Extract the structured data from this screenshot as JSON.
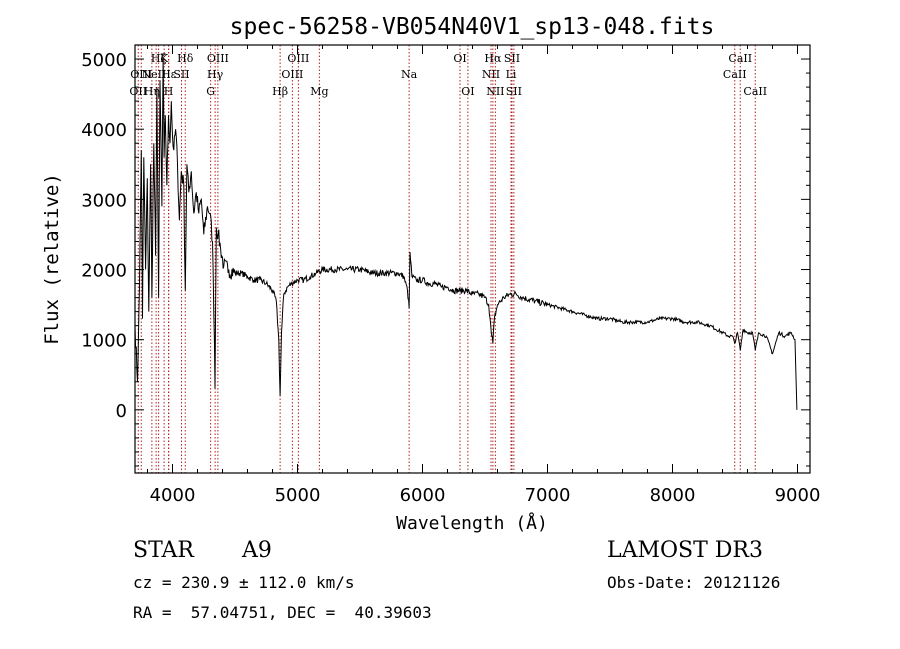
{
  "chart_data": {
    "type": "line",
    "title": "spec-56258-VB054N40V1_sp13-048.fits",
    "xlabel": "Wavelength (Å)",
    "ylabel": "Flux (relative)",
    "xlim": [
      3700,
      9100
    ],
    "ylim": [
      -900,
      5200
    ],
    "xticks": [
      4000,
      5000,
      6000,
      7000,
      8000,
      9000
    ],
    "yticks": [
      0,
      1000,
      2000,
      3000,
      4000,
      5000
    ],
    "grid": false,
    "line_color": "#000000",
    "line_marker_color": "#b22222",
    "series": [
      {
        "name": "flux",
        "x": [
          3700,
          3720,
          3735,
          3750,
          3760,
          3770,
          3785,
          3798,
          3810,
          3825,
          3835,
          3850,
          3865,
          3875,
          3889,
          3900,
          3915,
          3925,
          3933,
          3942,
          3955,
          3968,
          3980,
          3990,
          4000,
          4010,
          4025,
          4040,
          4055,
          4070,
          4090,
          4102,
          4115,
          4130,
          4150,
          4170,
          4190,
          4210,
          4230,
          4250,
          4280,
          4300,
          4320,
          4335,
          4340,
          4350,
          4365,
          4385,
          4410,
          4450,
          4500,
          4550,
          4600,
          4650,
          4700,
          4750,
          4800,
          4830,
          4850,
          4861,
          4872,
          4890,
          4920,
          4950,
          5000,
          5050,
          5100,
          5150,
          5200,
          5300,
          5400,
          5500,
          5600,
          5700,
          5800,
          5850,
          5880,
          5893,
          5900,
          5915,
          5950,
          6000,
          6050,
          6100,
          6150,
          6200,
          6250,
          6300,
          6350,
          6400,
          6450,
          6500,
          6530,
          6550,
          6563,
          6575,
          6600,
          6650,
          6700,
          6750,
          6800,
          6900,
          7000,
          7100,
          7200,
          7300,
          7400,
          7500,
          7600,
          7700,
          7800,
          7900,
          8000,
          8100,
          8200,
          8300,
          8400,
          8450,
          8480,
          8498,
          8520,
          8542,
          8565,
          8600,
          8640,
          8662,
          8690,
          8750,
          8800,
          8850,
          8900,
          8950,
          8980,
          8995
        ],
        "values": [
          1200,
          400,
          1700,
          3700,
          1300,
          3600,
          2000,
          3300,
          1400,
          3500,
          1600,
          3800,
          2200,
          4600,
          1600,
          4700,
          2900,
          5000,
          3600,
          4200,
          3200,
          4200,
          3800,
          4400,
          3900,
          3700,
          4000,
          3500,
          2700,
          3400,
          3200,
          1700,
          3500,
          3100,
          3400,
          2800,
          3100,
          2800,
          3000,
          2500,
          2900,
          2800,
          2400,
          1000,
          300,
          2600,
          2500,
          2300,
          2050,
          2000,
          1950,
          1950,
          1900,
          1850,
          1850,
          1800,
          1700,
          1550,
          1000,
          200,
          1100,
          1650,
          1750,
          1800,
          1850,
          1850,
          1900,
          1950,
          2000,
          2000,
          2000,
          2000,
          1950,
          1950,
          1950,
          1900,
          1700,
          1450,
          2250,
          1900,
          1850,
          1850,
          1800,
          1800,
          1750,
          1750,
          1700,
          1700,
          1700,
          1650,
          1650,
          1600,
          1500,
          1100,
          950,
          1300,
          1500,
          1600,
          1650,
          1650,
          1600,
          1550,
          1500,
          1450,
          1400,
          1350,
          1300,
          1300,
          1250,
          1250,
          1250,
          1300,
          1300,
          1250,
          1250,
          1200,
          1100,
          1050,
          1050,
          950,
          1100,
          850,
          1150,
          1100,
          1100,
          850,
          1100,
          1050,
          800,
          1100,
          1050,
          1100,
          1000,
          0
        ]
      }
    ],
    "lines": [
      {
        "x": 3726,
        "label": "OII",
        "row": 2
      },
      {
        "x": 3750,
        "label": "OIII",
        "row": 1
      },
      {
        "x": 3835,
        "label": "Hη",
        "row": 2
      },
      {
        "x": 3869,
        "label": "NeIII",
        "row": 1
      },
      {
        "x": 3889,
        "label": "Hζ",
        "row": 0
      },
      {
        "x": 3933,
        "label": "K",
        "row": 0
      },
      {
        "x": 3968,
        "label": "H",
        "row": 2
      },
      {
        "x": 3970,
        "label": "Hε",
        "row": 1
      },
      {
        "x": 4072,
        "label": "SII",
        "row": 1
      },
      {
        "x": 4102,
        "label": "Hδ",
        "row": 0
      },
      {
        "x": 4305,
        "label": "G",
        "row": 2
      },
      {
        "x": 4341,
        "label": "Hγ",
        "row": 1
      },
      {
        "x": 4363,
        "label": "OIII",
        "row": 0
      },
      {
        "x": 4861,
        "label": "Hβ",
        "row": 2
      },
      {
        "x": 4959,
        "label": "OIII",
        "row": 1
      },
      {
        "x": 5007,
        "label": "OIII",
        "row": 0
      },
      {
        "x": 5175,
        "label": "Mg",
        "row": 2
      },
      {
        "x": 5893,
        "label": "Na",
        "row": 1
      },
      {
        "x": 6300,
        "label": "OI",
        "row": 0
      },
      {
        "x": 6363,
        "label": "OI",
        "row": 2
      },
      {
        "x": 6548,
        "label": "NII",
        "row": 1
      },
      {
        "x": 6563,
        "label": "Hα",
        "row": 0
      },
      {
        "x": 6583,
        "label": "NII",
        "row": 2
      },
      {
        "x": 6708,
        "label": "Li",
        "row": 1
      },
      {
        "x": 6716,
        "label": "SII",
        "row": 0
      },
      {
        "x": 6731,
        "label": "SII",
        "row": 2
      },
      {
        "x": 8498,
        "label": "CaII",
        "row": 1
      },
      {
        "x": 8542,
        "label": "CaII",
        "row": 0
      },
      {
        "x": 8662,
        "label": "CaII",
        "row": 2
      }
    ]
  },
  "info": {
    "class": "STAR",
    "subclass": "A9",
    "survey": "LAMOST DR3",
    "cz": "cz = 230.9 ± 112.0 km/s",
    "obs_date": "Obs-Date: 20121126",
    "radec": "RA =  57.04751, DEC =  40.39603"
  }
}
